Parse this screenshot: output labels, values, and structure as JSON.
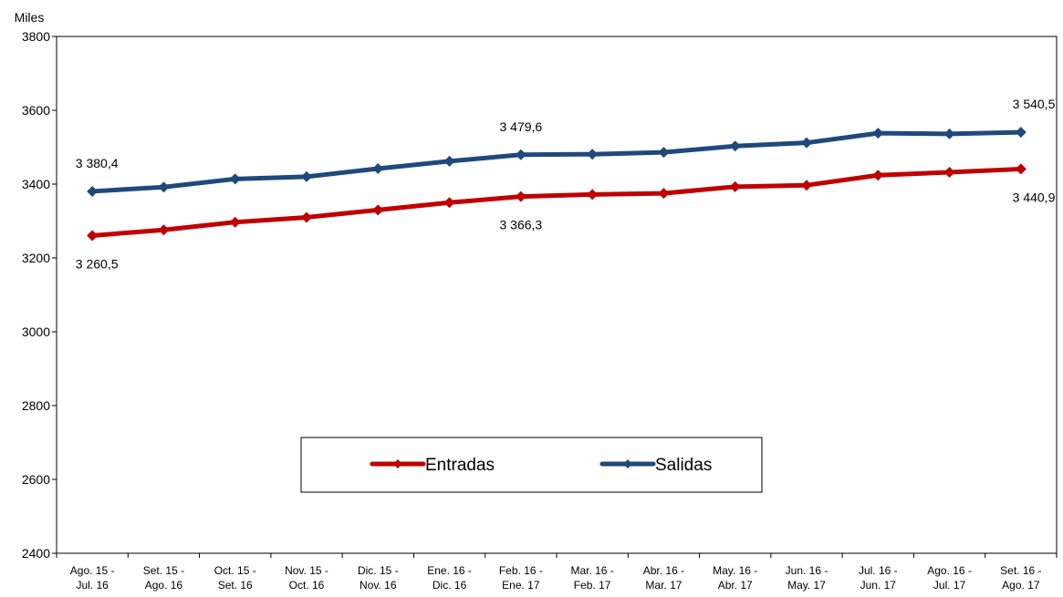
{
  "chart_data": {
    "type": "line",
    "unit_label": "Miles",
    "ylim": [
      2400,
      3800
    ],
    "y_ticks": [
      2400,
      2600,
      2800,
      3000,
      3200,
      3400,
      3600,
      3800
    ],
    "grid": false,
    "legend_position": "bottom-center",
    "categories": [
      [
        "Ago. 15 -",
        "Jul. 16"
      ],
      [
        "Set. 15 -",
        "Ago. 16"
      ],
      [
        "Oct. 15 -",
        "Set. 16"
      ],
      [
        "Nov. 15 -",
        "Oct. 16"
      ],
      [
        "Dic. 15 -",
        "Nov. 16"
      ],
      [
        "Ene. 16 -",
        "Dic. 16"
      ],
      [
        "Feb. 16 -",
        "Ene. 17"
      ],
      [
        "Mar. 16 -",
        "Feb. 17"
      ],
      [
        "Abr. 16 -",
        "Mar. 17"
      ],
      [
        "May. 16 -",
        "Abr. 17"
      ],
      [
        "Jun. 16 -",
        "May. 17"
      ],
      [
        "Jul.  16 -",
        "Jun. 17"
      ],
      [
        "Ago. 16 -",
        "Jul. 17"
      ],
      [
        "Set. 16 -",
        "Ago. 17"
      ]
    ],
    "series": [
      {
        "name": "Entradas",
        "color": "#c00000",
        "values": [
          3260.5,
          3276,
          3297,
          3310,
          3330,
          3350,
          3366.3,
          3372,
          3375,
          3393,
          3397,
          3424,
          3432,
          3440.9
        ],
        "data_labels": [
          {
            "index": 0,
            "text": "3 260,5",
            "side": "below"
          },
          {
            "index": 6,
            "text": "3 366,3",
            "side": "below"
          },
          {
            "index": 13,
            "text": "3 440,9",
            "side": "below"
          }
        ]
      },
      {
        "name": "Salidas",
        "color": "#1f497d",
        "values": [
          3380.4,
          3392,
          3414,
          3420,
          3442,
          3462,
          3479.6,
          3481,
          3486,
          3503,
          3512,
          3538,
          3536,
          3540.5
        ],
        "data_labels": [
          {
            "index": 0,
            "text": "3 380,4",
            "side": "above"
          },
          {
            "index": 6,
            "text": "3 479,6",
            "side": "above"
          },
          {
            "index": 13,
            "text": "3 540,5",
            "side": "above"
          }
        ]
      }
    ]
  }
}
